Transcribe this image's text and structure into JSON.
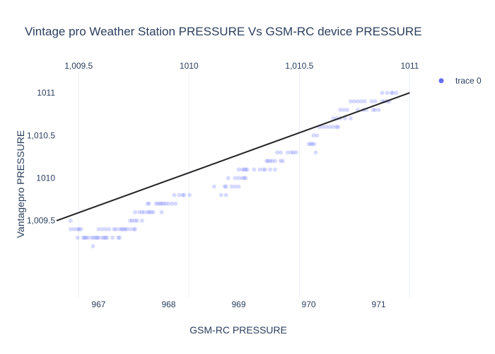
{
  "chart_data": {
    "type": "scatter",
    "title": "Vintage pro Weather Station PRESSURE Vs GSM-RC device PRESSURE",
    "xlabel": "GSM-RC PRESSURE",
    "ylabel": "Vantagepro PRESSURE",
    "xlim": [
      966.4,
      971.6
    ],
    "ylim": [
      1008.6,
      1011.3
    ],
    "x_ticks": [
      967,
      968,
      969,
      970,
      971
    ],
    "x_tick_labels": [
      "967",
      "968",
      "969",
      "970",
      "971"
    ],
    "y_ticks": [
      1009.5,
      1010,
      1010.5,
      1011
    ],
    "y_tick_labels": [
      "1,009.5",
      "1010",
      "1,010.5",
      "1011"
    ],
    "x2lim": [
      1009.4,
      1011.05
    ],
    "x2_ticks": [
      1009.5,
      1010,
      1010.5,
      1011
    ],
    "x2_tick_labels": [
      "1,009.5",
      "1010",
      "1,010.5",
      "1011"
    ],
    "grid": {
      "x2": true,
      "y": false,
      "x": false
    },
    "legend": {
      "position": "top-right",
      "entries": [
        "trace 0"
      ]
    },
    "colors": {
      "marker": "#636efa",
      "line": "#222222",
      "grid": "#ebf0f8"
    },
    "series": [
      {
        "name": "trace 0",
        "mode": "markers",
        "opacity": 0.25,
        "points": [
          [
            966.6,
            1009.5
          ],
          [
            966.6,
            1009.4
          ],
          [
            966.65,
            1009.4
          ],
          [
            966.7,
            1009.4
          ],
          [
            966.72,
            1009.4
          ],
          [
            966.75,
            1009.4
          ],
          [
            966.7,
            1009.3
          ],
          [
            966.78,
            1009.3
          ],
          [
            966.8,
            1009.3
          ],
          [
            966.82,
            1009.3
          ],
          [
            966.85,
            1009.3
          ],
          [
            966.9,
            1009.3
          ],
          [
            966.93,
            1009.3
          ],
          [
            966.96,
            1009.3
          ],
          [
            966.98,
            1009.3
          ],
          [
            967.0,
            1009.3
          ],
          [
            967.05,
            1009.3
          ],
          [
            967.08,
            1009.3
          ],
          [
            967.1,
            1009.3
          ],
          [
            967.12,
            1009.3
          ],
          [
            967.2,
            1009.3
          ],
          [
            967.28,
            1009.3
          ],
          [
            967.3,
            1009.3
          ],
          [
            966.92,
            1009.2
          ],
          [
            967.0,
            1009.4
          ],
          [
            967.05,
            1009.4
          ],
          [
            967.1,
            1009.4
          ],
          [
            967.15,
            1009.4
          ],
          [
            967.22,
            1009.4
          ],
          [
            967.25,
            1009.4
          ],
          [
            967.3,
            1009.4
          ],
          [
            967.33,
            1009.4
          ],
          [
            967.35,
            1009.4
          ],
          [
            967.38,
            1009.4
          ],
          [
            967.4,
            1009.4
          ],
          [
            967.45,
            1009.4
          ],
          [
            967.5,
            1009.4
          ],
          [
            967.52,
            1009.4
          ],
          [
            967.45,
            1009.5
          ],
          [
            967.48,
            1009.5
          ],
          [
            967.52,
            1009.5
          ],
          [
            967.55,
            1009.5
          ],
          [
            967.62,
            1009.5
          ],
          [
            967.52,
            1009.6
          ],
          [
            967.58,
            1009.6
          ],
          [
            967.62,
            1009.6
          ],
          [
            967.65,
            1009.6
          ],
          [
            967.7,
            1009.6
          ],
          [
            967.72,
            1009.6
          ],
          [
            967.75,
            1009.6
          ],
          [
            967.78,
            1009.6
          ],
          [
            967.9,
            1009.6
          ],
          [
            967.7,
            1009.7
          ],
          [
            967.72,
            1009.7
          ],
          [
            967.82,
            1009.7
          ],
          [
            967.85,
            1009.7
          ],
          [
            967.88,
            1009.7
          ],
          [
            967.9,
            1009.7
          ],
          [
            967.93,
            1009.7
          ],
          [
            967.96,
            1009.7
          ],
          [
            968.0,
            1009.7
          ],
          [
            968.05,
            1009.7
          ],
          [
            968.1,
            1009.7
          ],
          [
            968.08,
            1009.8
          ],
          [
            968.15,
            1009.8
          ],
          [
            968.2,
            1009.8
          ],
          [
            968.22,
            1009.8
          ],
          [
            968.3,
            1009.8
          ],
          [
            968.65,
            1009.9
          ],
          [
            968.8,
            1009.9
          ],
          [
            968.82,
            1009.9
          ],
          [
            968.9,
            1009.9
          ],
          [
            968.95,
            1009.9
          ],
          [
            969.0,
            1009.9
          ],
          [
            968.75,
            1009.8
          ],
          [
            968.82,
            1009.8
          ],
          [
            968.85,
            1010.0
          ],
          [
            968.95,
            1010.0
          ],
          [
            969.0,
            1010.0
          ],
          [
            969.05,
            1010.0
          ],
          [
            969.08,
            1010.0
          ],
          [
            969.1,
            1010.0
          ],
          [
            969.0,
            1010.1
          ],
          [
            969.05,
            1010.1
          ],
          [
            969.08,
            1010.1
          ],
          [
            969.1,
            1010.1
          ],
          [
            969.12,
            1010.1
          ],
          [
            969.22,
            1010.1
          ],
          [
            969.3,
            1010.1
          ],
          [
            969.35,
            1010.1
          ],
          [
            969.38,
            1010.1
          ],
          [
            969.45,
            1010.1
          ],
          [
            969.52,
            1010.1
          ],
          [
            969.4,
            1010.2
          ],
          [
            969.42,
            1010.2
          ],
          [
            969.45,
            1010.2
          ],
          [
            969.48,
            1010.2
          ],
          [
            969.52,
            1010.2
          ],
          [
            969.6,
            1010.2
          ],
          [
            969.63,
            1010.2
          ],
          [
            969.55,
            1010.3
          ],
          [
            969.6,
            1010.3
          ],
          [
            969.7,
            1010.3
          ],
          [
            969.75,
            1010.3
          ],
          [
            969.78,
            1010.3
          ],
          [
            969.82,
            1010.3
          ],
          [
            970.1,
            1010.3
          ],
          [
            970.0,
            1010.4
          ],
          [
            970.03,
            1010.4
          ],
          [
            970.05,
            1010.4
          ],
          [
            970.08,
            1010.4
          ],
          [
            970.07,
            1010.5
          ],
          [
            970.12,
            1010.5
          ],
          [
            970.15,
            1010.6
          ],
          [
            970.2,
            1010.6
          ],
          [
            970.25,
            1010.6
          ],
          [
            970.3,
            1010.6
          ],
          [
            970.35,
            1010.6
          ],
          [
            970.4,
            1010.6
          ],
          [
            970.42,
            1010.6
          ],
          [
            970.35,
            1010.7
          ],
          [
            970.4,
            1010.7
          ],
          [
            970.45,
            1010.7
          ],
          [
            970.52,
            1010.7
          ],
          [
            970.6,
            1010.7
          ],
          [
            970.45,
            1010.8
          ],
          [
            970.5,
            1010.8
          ],
          [
            970.55,
            1010.8
          ],
          [
            970.7,
            1010.8
          ],
          [
            970.78,
            1010.8
          ],
          [
            970.82,
            1010.8
          ],
          [
            970.92,
            1010.8
          ],
          [
            970.95,
            1010.8
          ],
          [
            971.0,
            1010.8
          ],
          [
            970.6,
            1010.9
          ],
          [
            970.65,
            1010.9
          ],
          [
            970.7,
            1010.9
          ],
          [
            970.75,
            1010.9
          ],
          [
            970.8,
            1010.9
          ],
          [
            970.9,
            1010.9
          ],
          [
            970.95,
            1010.9
          ],
          [
            971.05,
            1010.9
          ],
          [
            971.08,
            1010.9
          ],
          [
            971.12,
            1010.9
          ],
          [
            971.15,
            1010.9
          ],
          [
            971.05,
            1011.0
          ],
          [
            971.12,
            1011.0
          ],
          [
            971.18,
            1011.0
          ],
          [
            971.2,
            1011.0
          ],
          [
            971.25,
            1011.0
          ]
        ]
      },
      {
        "mode": "lines",
        "x2": [
          1009.4,
          1011.0
        ],
        "y": [
          1009.5,
          1011.0
        ]
      }
    ]
  }
}
